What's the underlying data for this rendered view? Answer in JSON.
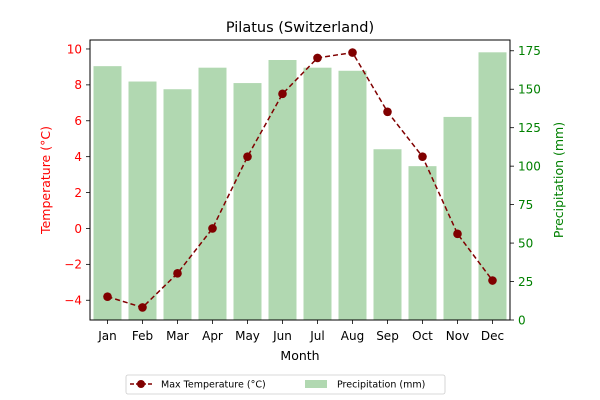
{
  "chart_data": {
    "type": "bar+line",
    "title": "Pilatus (Switzerland)",
    "xlabel": "Month",
    "ylabel_left": "Temperature (°C)",
    "ylabel_right": "Precipitation (mm)",
    "categories": [
      "Jan",
      "Feb",
      "Mar",
      "Apr",
      "May",
      "Jun",
      "Jul",
      "Aug",
      "Sep",
      "Oct",
      "Nov",
      "Dec"
    ],
    "series": [
      {
        "name": "Max Temperature (°C)",
        "type": "line",
        "axis": "left",
        "color": "#800000",
        "values": [
          -3.8,
          -4.4,
          -2.5,
          0.0,
          4.0,
          7.5,
          9.5,
          9.8,
          6.5,
          4.0,
          -0.3,
          -2.9
        ]
      },
      {
        "name": "Precipitation (mm)",
        "type": "bar",
        "axis": "right",
        "color": "#b1d8b1",
        "values": [
          165,
          155,
          150,
          164,
          154,
          169,
          164,
          162,
          111,
          100,
          132,
          174
        ]
      }
    ],
    "ylim_left": [
      -5.1,
      10.5
    ],
    "ylim_right": [
      0,
      182
    ],
    "yticks_left": [
      "−4",
      "−2",
      "0",
      "2",
      "4",
      "6",
      "8",
      "10"
    ],
    "yticks_right": [
      "0",
      "25",
      "50",
      "75",
      "100",
      "125",
      "150",
      "175"
    ],
    "left_axis_color": "#ff0000",
    "right_axis_color": "#008000",
    "grid": false,
    "legend_placement": "bottom-center"
  }
}
